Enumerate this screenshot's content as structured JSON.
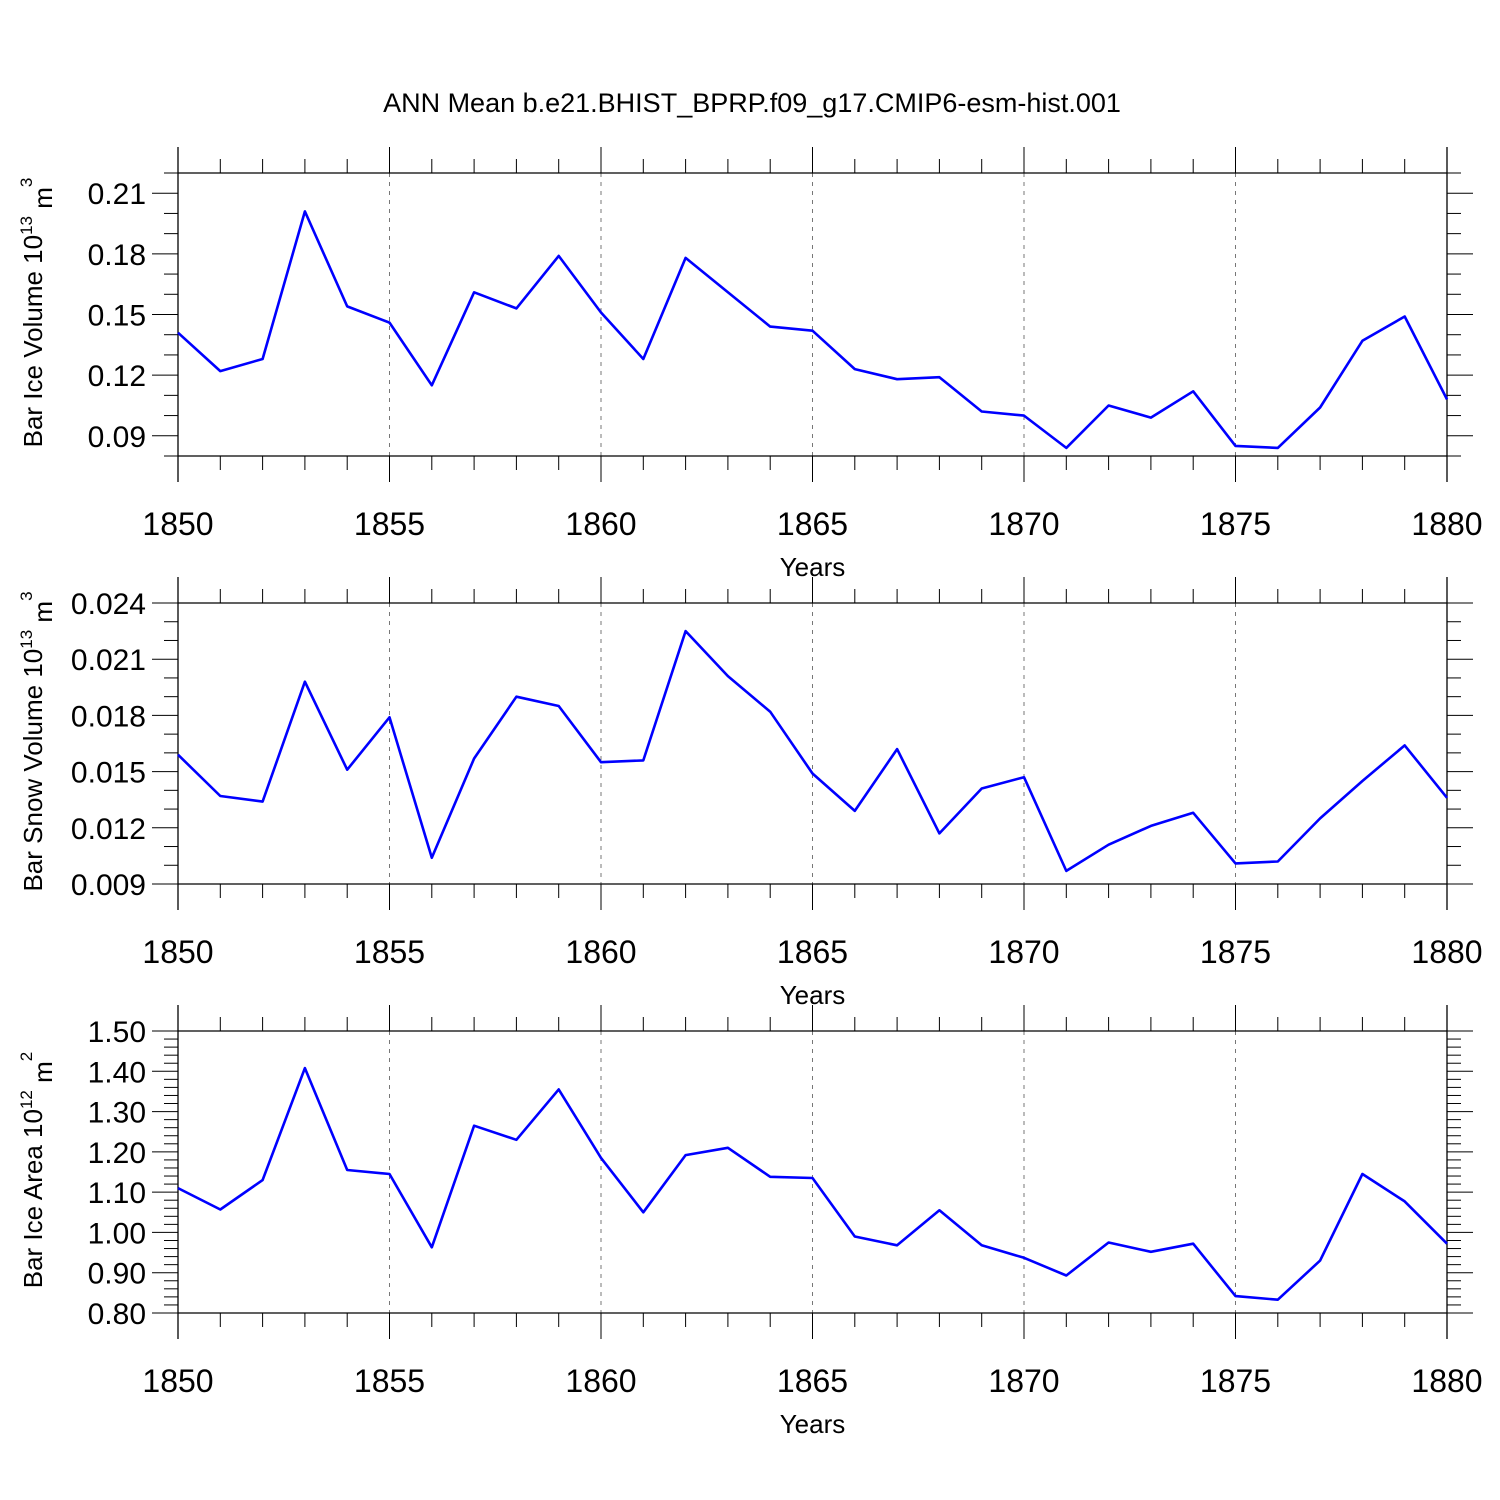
{
  "title": "ANN Mean b.e21.BHIST_BPRP.f09_g17.CMIP6-esm-hist.001",
  "line_color": "#0000ff",
  "chart_data": [
    {
      "type": "line",
      "ylabel": "Bar Ice Volume 10",
      "ylabel_exp": "13",
      "ylabel_unit": " m",
      "ylabel_unit_exp": "3",
      "xlabel": "Years",
      "xlim": [
        1850,
        1880
      ],
      "ylim": [
        0.08,
        0.22
      ],
      "xticks": [
        "1850",
        "1855",
        "1860",
        "1865",
        "1870",
        "1875",
        "1880"
      ],
      "yticks": [
        "0.09",
        "0.12",
        "0.15",
        "0.18",
        "0.21"
      ],
      "x": [
        1850,
        1851,
        1852,
        1853,
        1854,
        1855,
        1856,
        1857,
        1858,
        1859,
        1860,
        1861,
        1862,
        1863,
        1864,
        1865,
        1866,
        1867,
        1868,
        1869,
        1870,
        1871,
        1872,
        1873,
        1874,
        1875,
        1876,
        1877,
        1878,
        1879,
        1880
      ],
      "y": [
        0.141,
        0.122,
        0.128,
        0.201,
        0.154,
        0.146,
        0.115,
        0.161,
        0.153,
        0.179,
        0.151,
        0.128,
        0.178,
        0.161,
        0.144,
        0.142,
        0.123,
        0.118,
        0.119,
        0.102,
        0.1,
        0.084,
        0.105,
        0.099,
        0.112,
        0.085,
        0.084,
        0.104,
        0.137,
        0.149,
        0.108
      ]
    },
    {
      "type": "line",
      "ylabel": "Bar Snow Volume 10",
      "ylabel_exp": "13",
      "ylabel_unit": " m",
      "ylabel_unit_exp": "3",
      "xlabel": "Years",
      "xlim": [
        1850,
        1880
      ],
      "ylim": [
        0.009,
        0.024
      ],
      "xticks": [
        "1850",
        "1855",
        "1860",
        "1865",
        "1870",
        "1875",
        "1880"
      ],
      "yticks": [
        "0.009",
        "0.012",
        "0.015",
        "0.018",
        "0.021",
        "0.024"
      ],
      "x": [
        1850,
        1851,
        1852,
        1853,
        1854,
        1855,
        1856,
        1857,
        1858,
        1859,
        1860,
        1861,
        1862,
        1863,
        1864,
        1865,
        1866,
        1867,
        1868,
        1869,
        1870,
        1871,
        1872,
        1873,
        1874,
        1875,
        1876,
        1877,
        1878,
        1879,
        1880
      ],
      "y": [
        0.0159,
        0.0137,
        0.0134,
        0.0198,
        0.0151,
        0.0179,
        0.0104,
        0.0157,
        0.019,
        0.0185,
        0.0155,
        0.0156,
        0.0225,
        0.0201,
        0.0182,
        0.0149,
        0.0129,
        0.0162,
        0.0117,
        0.0141,
        0.0147,
        0.0097,
        0.0111,
        0.0121,
        0.0128,
        0.0101,
        0.0102,
        0.0125,
        0.0145,
        0.0164,
        0.0136
      ]
    },
    {
      "type": "line",
      "ylabel": "Bar Ice Area 10",
      "ylabel_exp": "12",
      "ylabel_unit": " m",
      "ylabel_unit_exp": "2",
      "xlabel": "Years",
      "xlim": [
        1850,
        1880
      ],
      "ylim": [
        0.8,
        1.5
      ],
      "xticks": [
        "1850",
        "1855",
        "1860",
        "1865",
        "1870",
        "1875",
        "1880"
      ],
      "yticks": [
        "0.80",
        "0.90",
        "1.00",
        "1.10",
        "1.20",
        "1.30",
        "1.40",
        "1.50"
      ],
      "x": [
        1850,
        1851,
        1852,
        1853,
        1854,
        1855,
        1856,
        1857,
        1858,
        1859,
        1860,
        1861,
        1862,
        1863,
        1864,
        1865,
        1866,
        1867,
        1868,
        1869,
        1870,
        1871,
        1872,
        1873,
        1874,
        1875,
        1876,
        1877,
        1878,
        1879,
        1880
      ],
      "y": [
        1.11,
        1.057,
        1.13,
        1.408,
        1.155,
        1.145,
        0.963,
        1.265,
        1.23,
        1.355,
        1.185,
        1.05,
        1.192,
        1.21,
        1.138,
        1.135,
        0.99,
        0.968,
        1.055,
        0.968,
        0.937,
        0.893,
        0.975,
        0.952,
        0.972,
        0.842,
        0.833,
        0.93,
        1.145,
        1.077,
        0.972
      ]
    }
  ]
}
